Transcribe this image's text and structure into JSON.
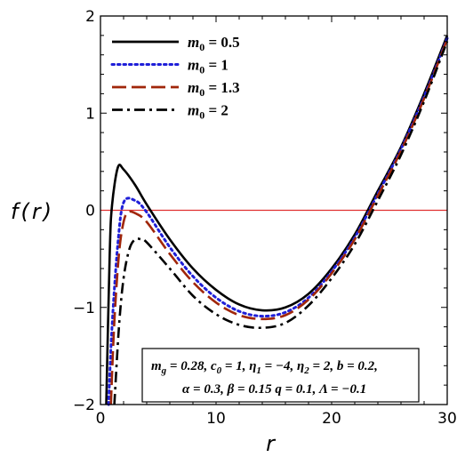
{
  "chart_data": {
    "type": "line",
    "xlabel": "r",
    "ylabel": "f(r)",
    "xlim": [
      0,
      30
    ],
    "ylim": [
      -2,
      2
    ],
    "x_ticks": [
      0,
      10,
      20,
      30
    ],
    "y_ticks": [
      -2,
      -1,
      0,
      1,
      2
    ],
    "x_tick_labels": [
      "0",
      "10",
      "20",
      "30"
    ],
    "y_tick_labels": [
      "−2",
      "−1",
      "0",
      "1",
      "2"
    ],
    "legend_position": "top-left",
    "series": [
      {
        "name": "m_0 = 0.5",
        "color": "#000000",
        "dash": "solid",
        "x": [
          0.5,
          0.8,
          1.0,
          1.5,
          2.0,
          3.0,
          4.0,
          6.0,
          8.0,
          10.0,
          12.0,
          14.0,
          16.0,
          18.0,
          20.0,
          22.0,
          24.0,
          26.0,
          28.0,
          30.0
        ],
        "y": [
          -2.0,
          -0.45,
          0.05,
          0.44,
          0.42,
          0.26,
          0.06,
          -0.3,
          -0.6,
          -0.82,
          -0.97,
          -1.03,
          -1.0,
          -0.86,
          -0.6,
          -0.25,
          0.2,
          0.65,
          1.2,
          1.8
        ]
      },
      {
        "name": "m_0 = 1",
        "color": "#1f1fd8",
        "dash": "dotted",
        "x": [
          0.7,
          1.0,
          1.5,
          2.0,
          3.0,
          4.0,
          6.0,
          8.0,
          10.0,
          12.0,
          14.0,
          16.0,
          18.0,
          20.0,
          22.0,
          24.0,
          26.0,
          28.0,
          30.0
        ],
        "y": [
          -2.0,
          -1.2,
          -0.35,
          0.08,
          0.1,
          -0.02,
          -0.38,
          -0.68,
          -0.9,
          -1.04,
          -1.09,
          -1.05,
          -0.9,
          -0.63,
          -0.28,
          0.17,
          0.63,
          1.17,
          1.77
        ]
      },
      {
        "name": "m_0 = 1.3",
        "color": "#a0260a",
        "dash": "dashed",
        "x": [
          0.9,
          1.2,
          1.6,
          2.0,
          2.4,
          3.0,
          4.0,
          6.0,
          8.0,
          10.0,
          12.0,
          14.0,
          16.0,
          18.0,
          20.0,
          22.0,
          24.0,
          26.0,
          28.0,
          30.0
        ],
        "y": [
          -2.0,
          -1.15,
          -0.45,
          -0.12,
          -0.02,
          -0.03,
          -0.12,
          -0.45,
          -0.74,
          -0.95,
          -1.08,
          -1.12,
          -1.08,
          -0.92,
          -0.65,
          -0.3,
          0.15,
          0.61,
          1.15,
          1.76
        ]
      },
      {
        "name": "m_0 = 2",
        "color": "#000000",
        "dash": "dashdot",
        "x": [
          1.2,
          1.6,
          2.0,
          2.5,
          3.0,
          3.5,
          4.0,
          6.0,
          8.0,
          10.0,
          12.0,
          14.0,
          16.0,
          18.0,
          20.0,
          22.0,
          24.0,
          26.0,
          28.0,
          30.0
        ],
        "y": [
          -2.0,
          -1.2,
          -0.7,
          -0.4,
          -0.3,
          -0.3,
          -0.33,
          -0.6,
          -0.88,
          -1.07,
          -1.18,
          -1.21,
          -1.16,
          -0.98,
          -0.7,
          -0.35,
          0.1,
          0.57,
          1.12,
          1.74
        ]
      }
    ],
    "reference_lines": [
      {
        "y": 0,
        "color": "#e03030"
      }
    ]
  },
  "legend": {
    "items": [
      {
        "sym": "m",
        "sub": "0",
        "rest": " = 0.5"
      },
      {
        "sym": "m",
        "sub": "0",
        "rest": " = 1"
      },
      {
        "sym": "m",
        "sub": "0",
        "rest": " = 1.3"
      },
      {
        "sym": "m",
        "sub": "0",
        "rest": " = 2"
      }
    ]
  },
  "annotation": {
    "line1": "m_g = 0.28, c_0 = 1, η_1 = −4, η_2 = 2, b = 0.2,",
    "line2": "α = 0.3, β = 0.15 q = 0.1, Λ = −0.1"
  }
}
